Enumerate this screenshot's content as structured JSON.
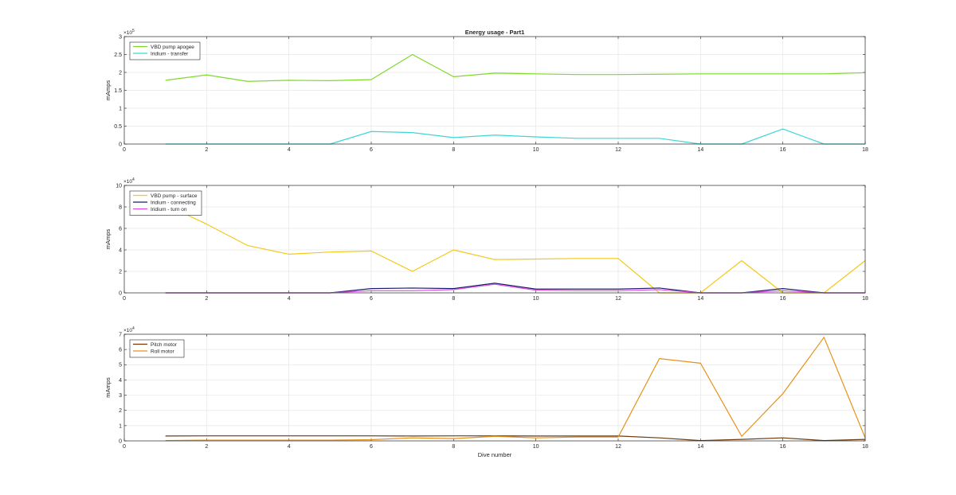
{
  "figure": {
    "title": "Energy usage - Part1",
    "background": "#ffffff",
    "axes_color": "#262626",
    "grid_color": "#e6e6e6"
  },
  "chart_data": [
    {
      "type": "line",
      "title": "Energy usage - Part1",
      "xlabel": "",
      "ylabel": "mAmps",
      "xlim": [
        0,
        18
      ],
      "ylim": [
        0,
        3
      ],
      "y_exponent_label": "×10^5",
      "y_exponent": 5,
      "grid": true,
      "legend_position": "top-left",
      "x_ticks": [
        0,
        2,
        4,
        6,
        8,
        10,
        12,
        14,
        16,
        18
      ],
      "y_ticks": [
        0,
        0.5,
        1,
        1.5,
        2,
        2.5,
        3
      ],
      "y_tick_labels": [
        "0",
        "0.5",
        "1",
        "1.5",
        "2",
        "2.5",
        "3"
      ],
      "x": [
        1,
        2,
        3,
        4,
        5,
        6,
        7,
        8,
        9,
        10,
        11,
        12,
        13,
        14,
        15,
        16,
        17,
        18
      ],
      "series": [
        {
          "name": "VBD pump apogee",
          "color": "#7fd92a",
          "values": [
            1.78,
            1.93,
            1.75,
            1.78,
            1.77,
            1.8,
            2.5,
            1.88,
            1.98,
            1.96,
            1.94,
            1.94,
            1.95,
            1.96,
            1.96,
            1.96,
            1.96,
            1.99
          ]
        },
        {
          "name": "Iridium - transfer",
          "color": "#3fd6d6",
          "values": [
            0,
            0,
            0,
            0,
            0,
            0.35,
            0.32,
            0.18,
            0.25,
            0.2,
            0.16,
            0.16,
            0.16,
            0,
            0,
            0.42,
            0,
            0
          ]
        }
      ]
    },
    {
      "type": "line",
      "title": "",
      "xlabel": "",
      "ylabel": "mAmps",
      "xlim": [
        0,
        18
      ],
      "ylim": [
        0,
        10
      ],
      "y_exponent_label": "×10^4",
      "y_exponent": 4,
      "grid": true,
      "legend_position": "top-left",
      "x_ticks": [
        0,
        2,
        4,
        6,
        8,
        10,
        12,
        14,
        16,
        18
      ],
      "y_ticks": [
        0,
        2,
        4,
        6,
        8,
        10
      ],
      "y_tick_labels": [
        "0",
        "2",
        "4",
        "6",
        "8",
        "10"
      ],
      "x": [
        1,
        2,
        3,
        4,
        5,
        6,
        7,
        8,
        9,
        10,
        11,
        12,
        13,
        14,
        15,
        16,
        17,
        18
      ],
      "series": [
        {
          "name": "VBD pump - surface",
          "color": "#f2c91a",
          "values": [
            8.2,
            6.4,
            4.4,
            3.6,
            3.8,
            3.9,
            2.0,
            4.0,
            3.1,
            3.15,
            3.2,
            3.2,
            0,
            0,
            3.0,
            0,
            0,
            3.0
          ]
        },
        {
          "name": "Iridium - connecting",
          "color": "#1a1a6e",
          "values": [
            0,
            0,
            0,
            0,
            0,
            0.4,
            0.45,
            0.4,
            0.9,
            0.35,
            0.35,
            0.35,
            0.45,
            0,
            0,
            0.4,
            0,
            0
          ]
        },
        {
          "name": "Iridium - turn on",
          "color": "#d94fd9",
          "values": [
            0,
            0,
            0,
            0,
            0,
            0.2,
            0.2,
            0.3,
            0.8,
            0.25,
            0.2,
            0.2,
            0.3,
            0,
            0,
            0.2,
            0,
            0
          ]
        }
      ]
    },
    {
      "type": "line",
      "title": "",
      "xlabel": "Dive number",
      "ylabel": "mAmps",
      "xlim": [
        0,
        18
      ],
      "ylim": [
        0,
        7
      ],
      "y_exponent_label": "×10^4",
      "y_exponent": 4,
      "grid": true,
      "legend_position": "top-left",
      "x_ticks": [
        0,
        2,
        4,
        6,
        8,
        10,
        12,
        14,
        16,
        18
      ],
      "y_ticks": [
        0,
        1,
        2,
        3,
        4,
        5,
        6,
        7
      ],
      "y_tick_labels": [
        "0",
        "1",
        "2",
        "3",
        "4",
        "5",
        "6",
        "7"
      ],
      "x": [
        1,
        2,
        3,
        4,
        5,
        6,
        7,
        8,
        9,
        10,
        11,
        12,
        13,
        14,
        15,
        16,
        17,
        18
      ],
      "series": [
        {
          "name": "Pitch motor",
          "color": "#6b3a0f",
          "values": [
            0.32,
            0.33,
            0.33,
            0.33,
            0.33,
            0.33,
            0.32,
            0.33,
            0.33,
            0.32,
            0.32,
            0.32,
            0.2,
            0.02,
            0.1,
            0.2,
            0.02,
            0.1
          ]
        },
        {
          "name": "Roll motor",
          "color": "#e8901a",
          "values": [
            0.02,
            0.05,
            0.05,
            0.05,
            0.05,
            0.08,
            0.2,
            0.15,
            0.3,
            0.2,
            0.25,
            0.25,
            5.4,
            5.1,
            0.3,
            3.1,
            6.8,
            0.2
          ]
        }
      ]
    }
  ]
}
